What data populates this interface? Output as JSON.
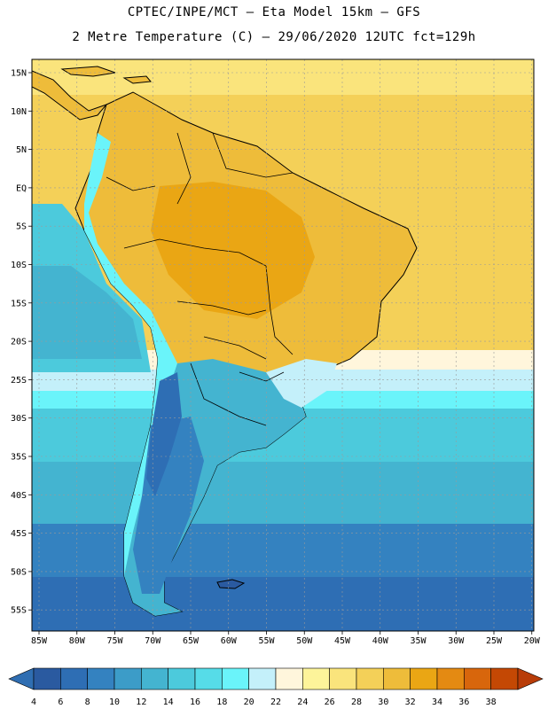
{
  "title": {
    "line1": "CPTEC/INPE/MCT –  Eta Model 15km – GFS",
    "line2": "2 Metre Temperature (C) – 29/06/2020 12UTC fct=129h"
  },
  "axes": {
    "lat_labels": [
      "15N",
      "10N",
      "5N",
      "EQ",
      "5S",
      "10S",
      "15S",
      "20S",
      "25S",
      "30S",
      "35S",
      "40S",
      "45S",
      "50S",
      "55S"
    ],
    "lon_labels": [
      "85W",
      "80W",
      "75W",
      "70W",
      "65W",
      "60W",
      "55W",
      "50W",
      "45W",
      "40W",
      "35W",
      "30W",
      "25W",
      "20W"
    ]
  },
  "colorbar": {
    "labels": [
      "4",
      "6",
      "8",
      "10",
      "12",
      "14",
      "16",
      "18",
      "20",
      "22",
      "24",
      "26",
      "28",
      "30",
      "32",
      "34",
      "36",
      "38"
    ],
    "colors": [
      "#2a5aa0",
      "#2e6eb4",
      "#3482c0",
      "#3c9cc8",
      "#44b4d0",
      "#4ccadc",
      "#56dce8",
      "#6af4fa",
      "#c4f0fa",
      "#fff6dc",
      "#fdf49a",
      "#fae47c",
      "#f4d058",
      "#eebc3a",
      "#eaa614",
      "#e48a12",
      "#d8660c",
      "#c44804"
    ],
    "low_color": "#2f6eb2",
    "high_color": "#b83c08"
  }
}
